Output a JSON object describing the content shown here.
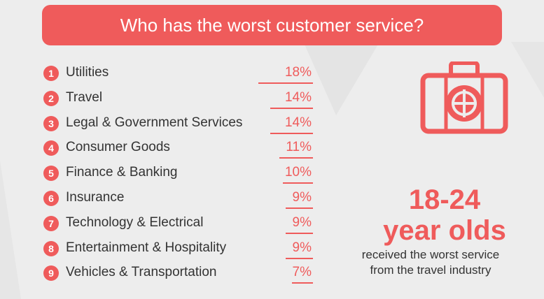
{
  "title": "Who has the worst customer service?",
  "chart_data": {
    "type": "table",
    "title": "Who has the worst customer service?",
    "ranks": [
      "1",
      "2",
      "3",
      "4",
      "5",
      "6",
      "7",
      "8",
      "9"
    ],
    "categories": [
      "Utilities",
      "Travel",
      "Legal & Government Services",
      "Consumer Goods",
      "Finance & Banking",
      "Insurance",
      "Technology & Electrical",
      "Entertainment & Hospitality",
      "Vehicles & Transportation"
    ],
    "values": [
      18,
      14,
      14,
      11,
      10,
      9,
      9,
      9,
      7
    ],
    "labels": [
      "18%",
      "14%",
      "14%",
      "11%",
      "10%",
      "9%",
      "9%",
      "9%",
      "7%"
    ],
    "unit": "%"
  },
  "stat": {
    "line1": "18-24",
    "line2": "year olds",
    "caption1": "received the worst service",
    "caption2": "from the travel industry"
  },
  "icon": "suitcase-globe-icon",
  "colors": {
    "accent": "#ef5b5b",
    "background": "#ededed",
    "text": "#333333"
  }
}
